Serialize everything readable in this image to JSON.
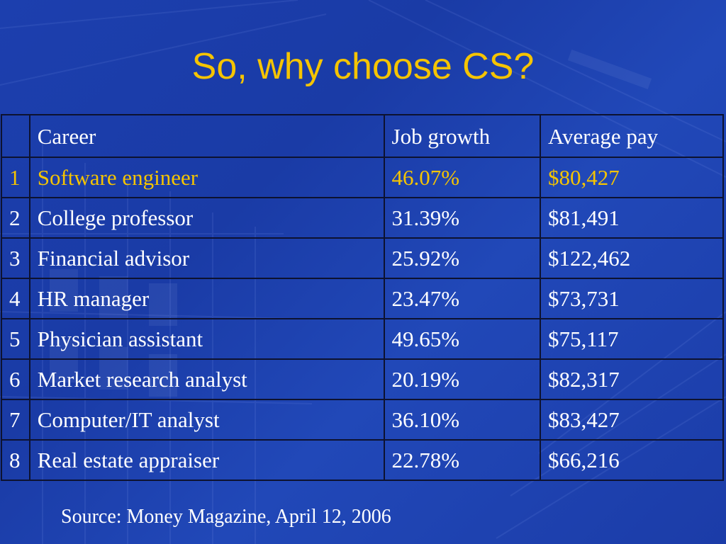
{
  "colors": {
    "background": "#1d40ad",
    "title": "#f5c400",
    "text": "#ffffff",
    "highlight": "#f5c400",
    "grid": "#0d1230"
  },
  "title": "So, why choose CS?",
  "table": {
    "headers": [
      "",
      "Career",
      "Job growth",
      "Average pay"
    ],
    "rows": [
      {
        "rank": "1",
        "career": "Software engineer",
        "growth": "46.07%",
        "pay": "$80,427",
        "highlight": true
      },
      {
        "rank": "2",
        "career": "College professor",
        "growth": "31.39%",
        "pay": "$81,491",
        "highlight": false
      },
      {
        "rank": "3",
        "career": "Financial advisor",
        "growth": "25.92%",
        "pay": "$122,462",
        "highlight": false
      },
      {
        "rank": "4",
        "career": "HR manager",
        "growth": "23.47%",
        "pay": "$73,731",
        "highlight": false
      },
      {
        "rank": "5",
        "career": "Physician assistant",
        "growth": "49.65%",
        "pay": "$75,117",
        "highlight": false
      },
      {
        "rank": "6",
        "career": "Market research analyst",
        "growth": "20.19%",
        "pay": "$82,317",
        "highlight": false
      },
      {
        "rank": "7",
        "career": "Computer/IT analyst",
        "growth": "36.10%",
        "pay": "$83,427",
        "highlight": false
      },
      {
        "rank": "8",
        "career": "Real estate appraiser",
        "growth": "22.78%",
        "pay": "$66,216",
        "highlight": false
      }
    ]
  },
  "source": "Source: Money Magazine, April 12, 2006"
}
